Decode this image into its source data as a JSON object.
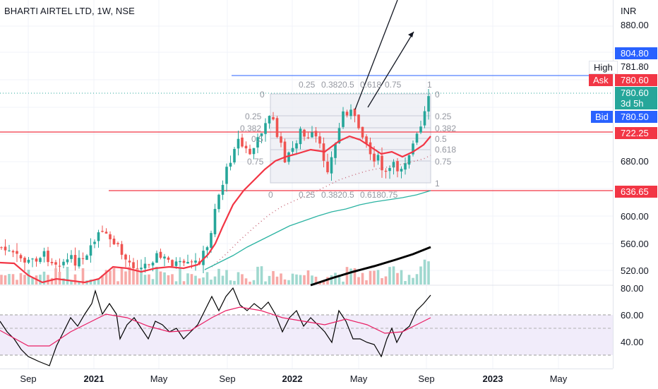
{
  "header": {
    "title": "BHARTI AIRTEL LTD, 1W, NSE"
  },
  "price_axis": {
    "unit": "INR",
    "ticks": [
      "880.00",
      "680.00",
      "600.00",
      "560.00",
      "520.00"
    ],
    "rsi_ticks": [
      "80.00",
      "60.00",
      "40.00"
    ]
  },
  "time_axis": {
    "labels": [
      "Sep",
      "2021",
      "May",
      "Sep",
      "2022",
      "May",
      "Sep",
      "2023",
      "May"
    ]
  },
  "price_tags": {
    "upper_line": "804.80",
    "high_label": "High",
    "high_value": "781.80",
    "ask_label": "Ask",
    "ask_value": "780.60",
    "last_value": "780.60",
    "countdown": "3d 5h",
    "bid_label": "Bid",
    "bid_value": "780.50",
    "resistance": "722.25",
    "support": "636.65"
  },
  "fib_levels_right": [
    "0",
    "0.25",
    "0.382",
    "0.5",
    "0.618",
    "0.75",
    "1"
  ],
  "fib_levels_left": [
    "0",
    "0.25",
    "0.382",
    "0.5",
    "0.75"
  ],
  "fib_levels_top": [
    "0.25",
    "0.382",
    "0.5",
    "0.618",
    "0.75",
    "1"
  ],
  "fib_levels_bottom": [
    "0",
    "0.25",
    "0.382",
    "0.5",
    "0.618",
    "0.75"
  ],
  "colors": {
    "up": "#26a69a",
    "down": "#ef5350",
    "up_vol": "#9fd8cf",
    "down_vol": "#f7a9a7",
    "blue": "#2962ff",
    "red_line": "#f23645",
    "teal_ma": "#2bb3a2",
    "black_ma": "#000000",
    "ema": "#f23645",
    "rsi": "#000000",
    "rsi_ma": "#e91e63",
    "rsi_band": "#f1ecfa"
  }
}
